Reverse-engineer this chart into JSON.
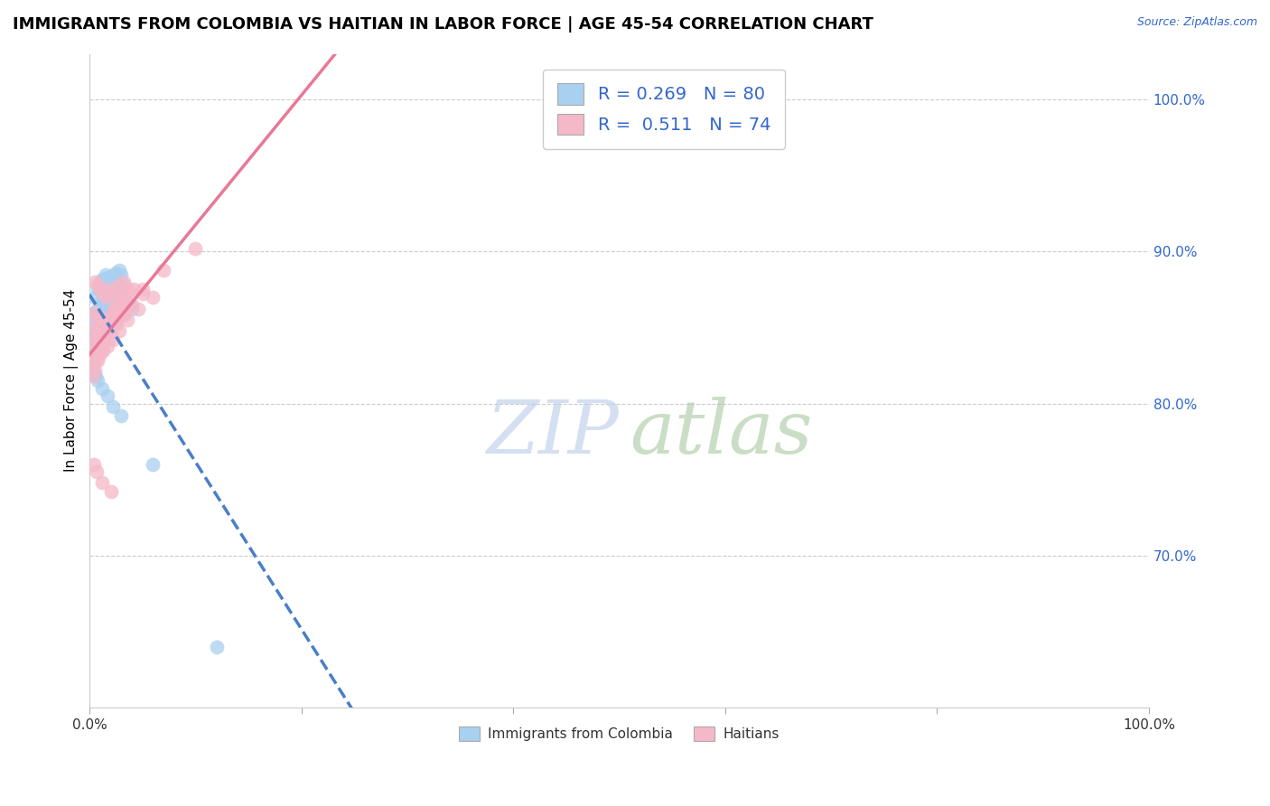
{
  "title": "IMMIGRANTS FROM COLOMBIA VS HAITIAN IN LABOR FORCE | AGE 45-54 CORRELATION CHART",
  "source_text": "Source: ZipAtlas.com",
  "ylabel": "In Labor Force | Age 45-54",
  "xlim": [
    0.0,
    1.0
  ],
  "ylim": [
    0.6,
    1.03
  ],
  "yticks": [
    0.7,
    0.8,
    0.9,
    1.0
  ],
  "ytick_labels": [
    "70.0%",
    "80.0%",
    "90.0%",
    "100.0%"
  ],
  "colombia_R": 0.269,
  "colombia_N": 80,
  "haitian_R": 0.511,
  "haitian_N": 74,
  "colombia_color": "#a8d0f0",
  "haitian_color": "#f5b8c8",
  "colombia_line_color": "#4a7ec8",
  "haitian_line_color": "#e87898",
  "legend_color": "#3366cc",
  "background_color": "#ffffff",
  "grid_color": "#cccccc",
  "title_fontsize": 13,
  "axis_label_fontsize": 11,
  "tick_fontsize": 11,
  "legend_fontsize": 14,
  "colombia_x": [
    0.005,
    0.008,
    0.01,
    0.012,
    0.015,
    0.018,
    0.02,
    0.022,
    0.025,
    0.028,
    0.005,
    0.008,
    0.01,
    0.012,
    0.015,
    0.018,
    0.02,
    0.022,
    0.025,
    0.03,
    0.005,
    0.007,
    0.009,
    0.011,
    0.013,
    0.016,
    0.019,
    0.023,
    0.027,
    0.032,
    0.004,
    0.006,
    0.008,
    0.01,
    0.012,
    0.014,
    0.017,
    0.02,
    0.024,
    0.028,
    0.003,
    0.005,
    0.007,
    0.009,
    0.011,
    0.014,
    0.018,
    0.022,
    0.027,
    0.033,
    0.004,
    0.006,
    0.008,
    0.01,
    0.013,
    0.016,
    0.02,
    0.025,
    0.03,
    0.038,
    0.003,
    0.005,
    0.007,
    0.01,
    0.013,
    0.017,
    0.021,
    0.026,
    0.032,
    0.04,
    0.003,
    0.004,
    0.006,
    0.008,
    0.012,
    0.017,
    0.022,
    0.03,
    0.06,
    0.12
  ],
  "colombia_y": [
    0.87,
    0.875,
    0.88,
    0.882,
    0.885,
    0.883,
    0.882,
    0.884,
    0.886,
    0.888,
    0.86,
    0.862,
    0.864,
    0.868,
    0.87,
    0.872,
    0.875,
    0.878,
    0.88,
    0.885,
    0.855,
    0.858,
    0.86,
    0.862,
    0.865,
    0.868,
    0.87,
    0.873,
    0.876,
    0.878,
    0.848,
    0.85,
    0.852,
    0.855,
    0.858,
    0.86,
    0.862,
    0.865,
    0.868,
    0.872,
    0.842,
    0.845,
    0.848,
    0.85,
    0.852,
    0.855,
    0.858,
    0.862,
    0.865,
    0.868,
    0.838,
    0.84,
    0.843,
    0.845,
    0.848,
    0.85,
    0.853,
    0.856,
    0.86,
    0.865,
    0.832,
    0.835,
    0.838,
    0.842,
    0.845,
    0.848,
    0.852,
    0.856,
    0.86,
    0.862,
    0.825,
    0.82,
    0.818,
    0.815,
    0.81,
    0.805,
    0.798,
    0.792,
    0.76,
    0.64
  ],
  "haitian_x": [
    0.005,
    0.008,
    0.01,
    0.013,
    0.016,
    0.019,
    0.022,
    0.025,
    0.028,
    0.032,
    0.005,
    0.008,
    0.01,
    0.013,
    0.016,
    0.02,
    0.023,
    0.027,
    0.032,
    0.037,
    0.004,
    0.007,
    0.009,
    0.012,
    0.015,
    0.018,
    0.022,
    0.026,
    0.031,
    0.038,
    0.004,
    0.006,
    0.009,
    0.012,
    0.015,
    0.019,
    0.023,
    0.028,
    0.034,
    0.042,
    0.004,
    0.006,
    0.009,
    0.012,
    0.016,
    0.02,
    0.025,
    0.032,
    0.04,
    0.05,
    0.003,
    0.006,
    0.009,
    0.013,
    0.017,
    0.022,
    0.028,
    0.036,
    0.046,
    0.06,
    0.003,
    0.005,
    0.008,
    0.012,
    0.018,
    0.025,
    0.035,
    0.05,
    0.07,
    0.1,
    0.004,
    0.007,
    0.012,
    0.02
  ],
  "haitian_y": [
    0.88,
    0.878,
    0.875,
    0.872,
    0.87,
    0.875,
    0.872,
    0.875,
    0.878,
    0.88,
    0.86,
    0.858,
    0.855,
    0.852,
    0.855,
    0.858,
    0.862,
    0.865,
    0.87,
    0.875,
    0.85,
    0.848,
    0.845,
    0.848,
    0.85,
    0.855,
    0.858,
    0.862,
    0.868,
    0.872,
    0.84,
    0.842,
    0.845,
    0.848,
    0.85,
    0.855,
    0.858,
    0.862,
    0.868,
    0.875,
    0.832,
    0.835,
    0.838,
    0.842,
    0.845,
    0.848,
    0.852,
    0.858,
    0.865,
    0.872,
    0.825,
    0.828,
    0.832,
    0.835,
    0.838,
    0.842,
    0.848,
    0.855,
    0.862,
    0.87,
    0.818,
    0.822,
    0.828,
    0.835,
    0.842,
    0.852,
    0.862,
    0.875,
    0.888,
    0.902,
    0.76,
    0.755,
    0.748,
    0.742
  ]
}
